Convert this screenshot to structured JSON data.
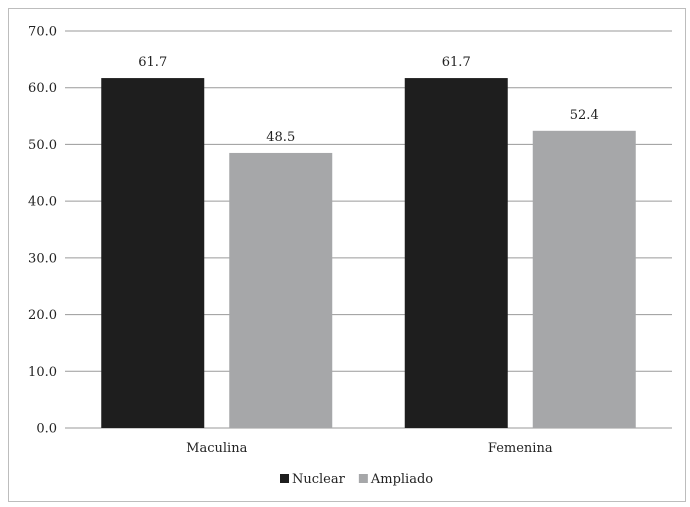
{
  "chart_data": {
    "type": "bar",
    "categories": [
      "Maculina",
      "Femenina"
    ],
    "series": [
      {
        "name": "Nuclear",
        "values": [
          61.7,
          61.7
        ],
        "color": "#1e1e1e"
      },
      {
        "name": "Ampliado",
        "values": [
          48.5,
          52.4
        ],
        "color": "#a6a7a9"
      }
    ],
    "ylim": [
      0,
      70
    ],
    "yticks": [
      "0.0",
      "10.0",
      "20.0",
      "30.0",
      "40.0",
      "50.0",
      "60.0",
      "70.0"
    ],
    "ytick_step": 10,
    "data_labels": [
      [
        "61.7",
        "61.7"
      ],
      [
        "48.5",
        "52.4"
      ]
    ],
    "grid": true,
    "legend": "bottom-center",
    "gridline_color": "#9a9a9a"
  }
}
